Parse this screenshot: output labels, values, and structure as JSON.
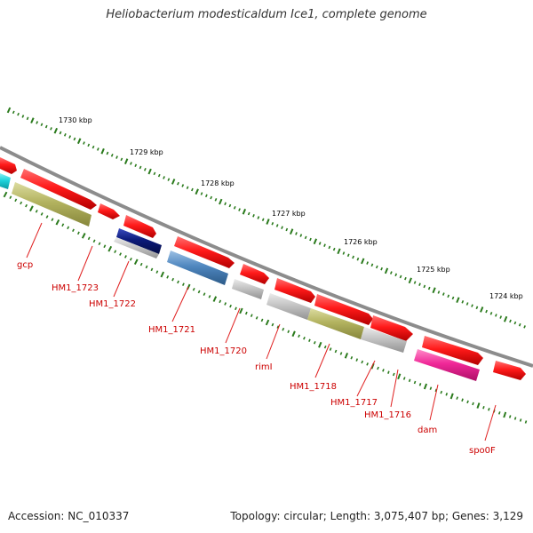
{
  "title": "Heliobacterium modesticaldum Ice1, complete genome",
  "footer": {
    "accession": "Accession: NC_010337",
    "summary": "Topology: circular; Length: 3,075,407 bp; Genes: 3,129"
  },
  "colors": {
    "backbone": "#8c8c8c",
    "tick": "#2a7a1c",
    "gene_label": "#cc0000",
    "leader": "#e02020",
    "feature_red": "#ff1a1a",
    "feature_cyan": "#1fd3dc",
    "feature_olive": "#b3b360",
    "feature_navy": "#0c1a7a",
    "feature_gray": "#c4c4c4",
    "feature_steel": "#4f87bf",
    "feature_magenta": "#f02898"
  },
  "scale_labels": [
    "1730 kbp",
    "1729 kbp",
    "1728 kbp",
    "1727 kbp",
    "1726 kbp",
    "1725 kbp",
    "1724 kbp"
  ],
  "gene_labels": [
    "gcp",
    "HM1_1723",
    "HM1_1722",
    "HM1_1721",
    "HM1_1720",
    "rimI",
    "HM1_1718",
    "HM1_1717",
    "HM1_1716",
    "dam",
    "spo0F"
  ]
}
